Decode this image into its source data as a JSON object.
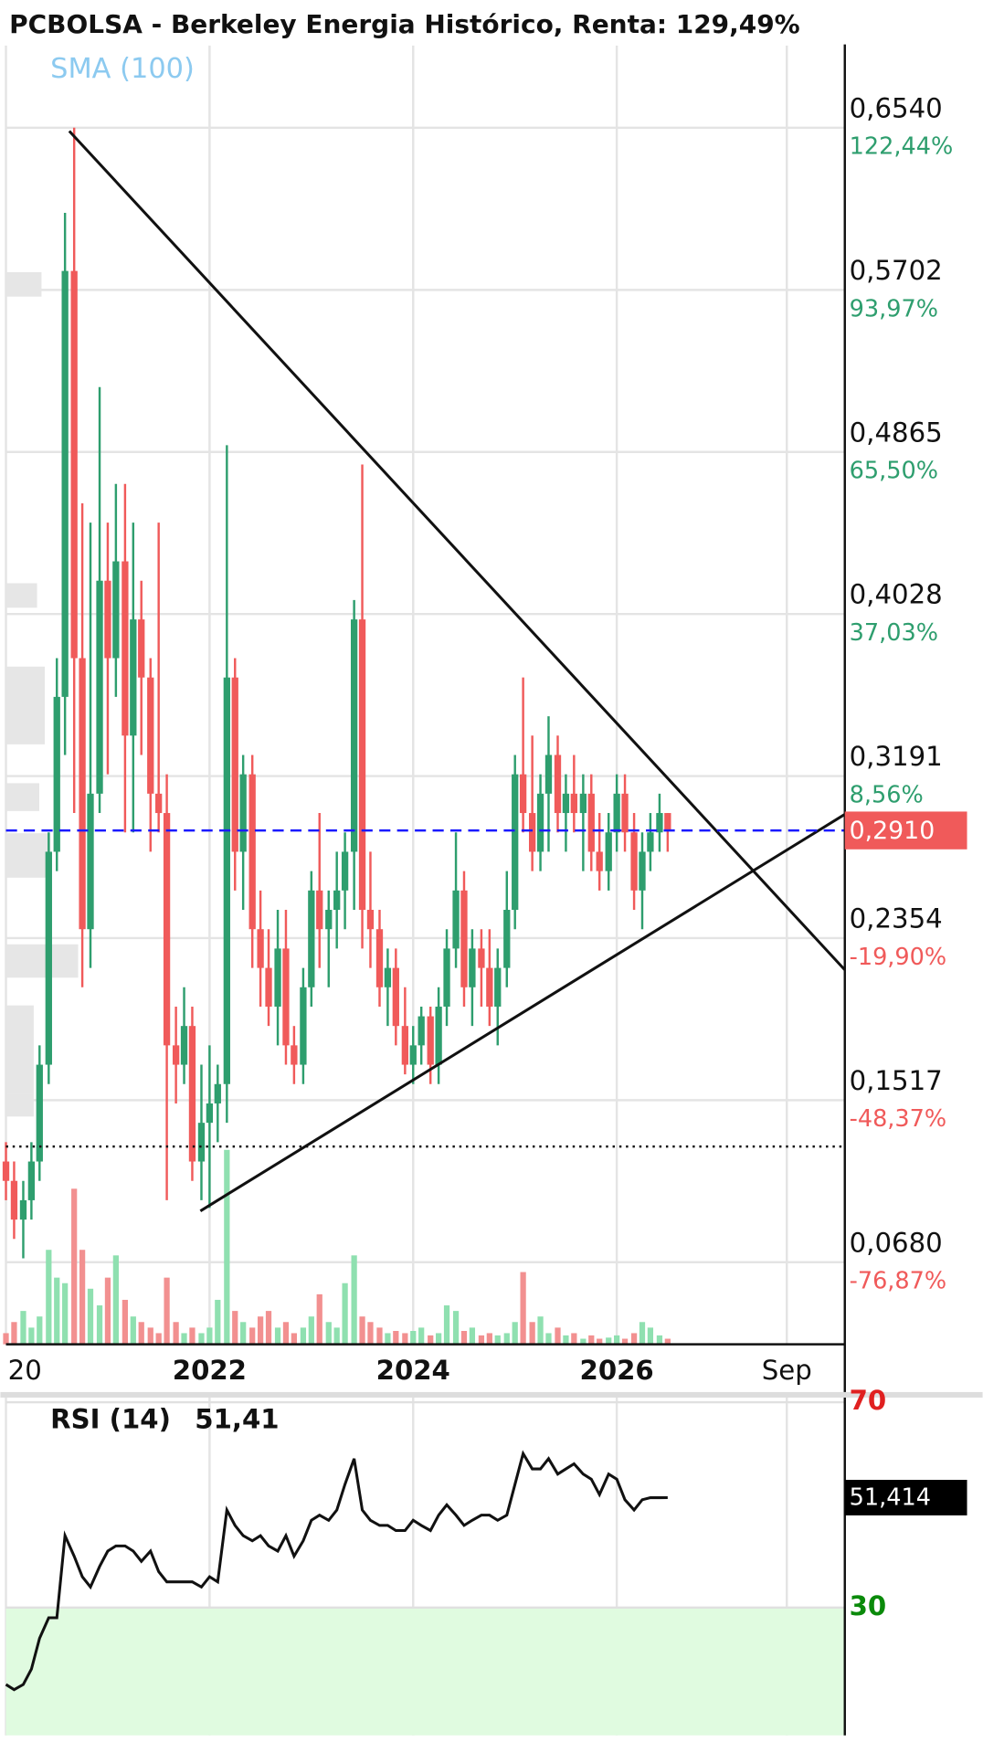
{
  "chart_data": {
    "type": "candlestick",
    "title": "PCBOLSA - Berkeley Energia Histórico, Renta: 129,49%",
    "indicator_label": "SMA (100)",
    "up_color": "#2e9e6e",
    "down_color": "#f05a5a",
    "volume_up_color": "#8fe0b0",
    "volume_down_color": "#f29090",
    "xlim": [
      2020,
      2028.24
    ],
    "xticks": [
      {
        "value": 2020,
        "label": "20"
      },
      2022,
      2024,
      2026,
      {
        "value": 2027.67,
        "label": "Sep"
      }
    ],
    "ylim": [
      0.0256,
      0.697
    ],
    "yticks": [
      {
        "value": 0.068,
        "label": "0,0680"
      },
      {
        "value": 0.1517,
        "label": "0,1517"
      },
      {
        "value": 0.2354,
        "label": "0,2354"
      },
      {
        "value": 0.3191,
        "label": "0,3191"
      },
      {
        "value": 0.4028,
        "label": "0,4028"
      },
      {
        "value": 0.4865,
        "label": "0,4865"
      },
      {
        "value": 0.5702,
        "label": "0,5702"
      },
      {
        "value": 0.654,
        "label": "0,6540"
      }
    ],
    "ytick_returns": [
      {
        "value": -76.87,
        "label": "-76,87%"
      },
      {
        "value": -48.37,
        "label": "-48,37%"
      },
      {
        "value": -19.9,
        "label": "-19,90%"
      },
      {
        "value": 8.56,
        "label": "8,56%"
      },
      {
        "value": 37.03,
        "label": "37,03%"
      },
      {
        "value": 65.5,
        "label": "65,50%"
      },
      {
        "value": 93.97,
        "label": "93,97%"
      },
      {
        "value": 122.44,
        "label": "122,44%"
      }
    ],
    "grid": true,
    "last_price": {
      "value": 0.291,
      "label": "0,2910",
      "color": "#f05a5a",
      "line_color": "#1a1aff"
    },
    "x": [
      2020,
      2020.08,
      2020.17,
      2020.25,
      2020.33,
      2020.42,
      2020.5,
      2020.58,
      2020.67,
      2020.75,
      2020.83,
      2020.92,
      2021,
      2021.08,
      2021.17,
      2021.25,
      2021.33,
      2021.42,
      2021.5,
      2021.58,
      2021.67,
      2021.75,
      2021.83,
      2021.92,
      2022,
      2022.08,
      2022.17,
      2022.25,
      2022.33,
      2022.42,
      2022.5,
      2022.58,
      2022.67,
      2022.75,
      2022.83,
      2022.92,
      2023,
      2023.08,
      2023.17,
      2023.25,
      2023.33,
      2023.42,
      2023.5,
      2023.58,
      2023.67,
      2023.75,
      2023.83,
      2023.92,
      2024,
      2024.08,
      2024.17,
      2024.25,
      2024.33,
      2024.42,
      2024.5,
      2024.58,
      2024.67,
      2024.75,
      2024.83,
      2024.92,
      2025,
      2025.08,
      2025.17,
      2025.25,
      2025.33,
      2025.42,
      2025.5,
      2025.58,
      2025.67,
      2025.75,
      2025.83,
      2025.92,
      2026,
      2026.08,
      2026.17,
      2026.25,
      2026.33,
      2026.42,
      2026.5
    ],
    "open": [
      0.12,
      0.11,
      0.09,
      0.1,
      0.12,
      0.17,
      0.28,
      0.36,
      0.58,
      0.38,
      0.24,
      0.31,
      0.42,
      0.38,
      0.43,
      0.34,
      0.4,
      0.37,
      0.31,
      0.3,
      0.18,
      0.17,
      0.19,
      0.12,
      0.14,
      0.15,
      0.16,
      0.37,
      0.28,
      0.32,
      0.24,
      0.22,
      0.2,
      0.23,
      0.18,
      0.17,
      0.21,
      0.26,
      0.24,
      0.25,
      0.26,
      0.28,
      0.4,
      0.25,
      0.24,
      0.21,
      0.22,
      0.19,
      0.17,
      0.18,
      0.195,
      0.17,
      0.2,
      0.23,
      0.26,
      0.21,
      0.23,
      0.22,
      0.2,
      0.22,
      0.25,
      0.32,
      0.3,
      0.28,
      0.31,
      0.33,
      0.3,
      0.31,
      0.3,
      0.31,
      0.28,
      0.27,
      0.29,
      0.31,
      0.29,
      0.26,
      0.28,
      0.29,
      0.3
    ],
    "high": [
      0.13,
      0.12,
      0.11,
      0.13,
      0.18,
      0.29,
      0.38,
      0.61,
      0.654,
      0.46,
      0.45,
      0.52,
      0.45,
      0.47,
      0.47,
      0.45,
      0.42,
      0.38,
      0.45,
      0.32,
      0.2,
      0.21,
      0.2,
      0.17,
      0.18,
      0.17,
      0.49,
      0.38,
      0.33,
      0.33,
      0.26,
      0.24,
      0.25,
      0.25,
      0.19,
      0.22,
      0.27,
      0.3,
      0.26,
      0.28,
      0.29,
      0.41,
      0.48,
      0.28,
      0.25,
      0.23,
      0.23,
      0.21,
      0.19,
      0.2,
      0.2,
      0.21,
      0.24,
      0.29,
      0.27,
      0.24,
      0.24,
      0.24,
      0.23,
      0.27,
      0.33,
      0.37,
      0.34,
      0.32,
      0.35,
      0.34,
      0.32,
      0.33,
      0.32,
      0.32,
      0.3,
      0.3,
      0.32,
      0.32,
      0.3,
      0.29,
      0.3,
      0.31,
      0.3
    ],
    "low": [
      0.1,
      0.08,
      0.07,
      0.09,
      0.11,
      0.16,
      0.27,
      0.33,
      0.3,
      0.21,
      0.22,
      0.3,
      0.32,
      0.36,
      0.29,
      0.29,
      0.33,
      0.28,
      0.29,
      0.1,
      0.15,
      0.16,
      0.11,
      0.1,
      0.096,
      0.13,
      0.14,
      0.26,
      0.25,
      0.22,
      0.2,
      0.19,
      0.18,
      0.17,
      0.16,
      0.16,
      0.2,
      0.22,
      0.21,
      0.23,
      0.24,
      0.25,
      0.23,
      0.22,
      0.2,
      0.19,
      0.18,
      0.165,
      0.16,
      0.17,
      0.16,
      0.16,
      0.19,
      0.22,
      0.2,
      0.19,
      0.2,
      0.19,
      0.18,
      0.21,
      0.24,
      0.29,
      0.27,
      0.27,
      0.28,
      0.29,
      0.28,
      0.29,
      0.27,
      0.27,
      0.26,
      0.26,
      0.28,
      0.28,
      0.25,
      0.24,
      0.27,
      0.28,
      0.28
    ],
    "close": [
      0.11,
      0.09,
      0.1,
      0.12,
      0.17,
      0.28,
      0.36,
      0.58,
      0.38,
      0.24,
      0.31,
      0.42,
      0.38,
      0.43,
      0.34,
      0.4,
      0.37,
      0.31,
      0.3,
      0.18,
      0.17,
      0.19,
      0.12,
      0.14,
      0.15,
      0.16,
      0.37,
      0.28,
      0.32,
      0.24,
      0.22,
      0.2,
      0.23,
      0.18,
      0.17,
      0.21,
      0.26,
      0.24,
      0.25,
      0.26,
      0.28,
      0.4,
      0.25,
      0.24,
      0.21,
      0.22,
      0.19,
      0.17,
      0.18,
      0.195,
      0.17,
      0.2,
      0.23,
      0.26,
      0.21,
      0.23,
      0.22,
      0.2,
      0.22,
      0.25,
      0.32,
      0.3,
      0.28,
      0.31,
      0.33,
      0.3,
      0.31,
      0.3,
      0.31,
      0.28,
      0.27,
      0.29,
      0.31,
      0.29,
      0.26,
      0.28,
      0.29,
      0.3,
      0.291
    ],
    "volume_lim": [
      0,
      180
    ],
    "volume": [
      10,
      20,
      30,
      15,
      25,
      85,
      60,
      55,
      140,
      85,
      50,
      35,
      60,
      80,
      40,
      25,
      20,
      15,
      10,
      60,
      20,
      10,
      15,
      10,
      15,
      40,
      175,
      30,
      20,
      15,
      25,
      30,
      15,
      20,
      10,
      15,
      25,
      45,
      20,
      15,
      55,
      80,
      25,
      20,
      15,
      10,
      12,
      10,
      12,
      15,
      8,
      10,
      35,
      30,
      12,
      15,
      8,
      10,
      8,
      10,
      20,
      65,
      20,
      25,
      10,
      15,
      8,
      10,
      5,
      8,
      5,
      6,
      8,
      5,
      10,
      20,
      15,
      8,
      5
    ],
    "rsi": {
      "title": "RSI (14)",
      "last_label": "51,41",
      "color": "#111111",
      "oversold_fill": "#e0fbe0",
      "ylim": [
        5.1,
        70.9
      ],
      "yticks": [
        {
          "value": 30,
          "label": "30",
          "color": "#0a8a0a"
        },
        {
          "value": 70,
          "label": "70",
          "color": "#e02020"
        }
      ],
      "values": [
        15,
        14,
        15,
        18,
        24,
        28,
        28,
        44,
        40,
        36,
        34,
        38,
        41,
        42,
        42,
        41,
        39,
        41,
        37,
        35,
        35,
        35,
        35,
        34,
        36,
        35,
        49,
        46,
        44,
        43,
        44,
        42,
        41,
        44,
        40,
        43,
        47,
        48,
        47,
        49,
        54,
        59,
        49,
        47,
        46,
        46,
        45,
        45,
        47,
        46,
        45,
        48,
        50,
        48,
        46,
        47,
        48,
        48,
        47,
        48,
        54,
        60,
        57,
        57,
        59,
        56,
        57,
        58,
        56,
        55,
        52,
        56,
        55,
        51,
        49,
        51,
        51.4,
        51.4,
        51.414
      ],
      "value_label": "51,414"
    }
  }
}
